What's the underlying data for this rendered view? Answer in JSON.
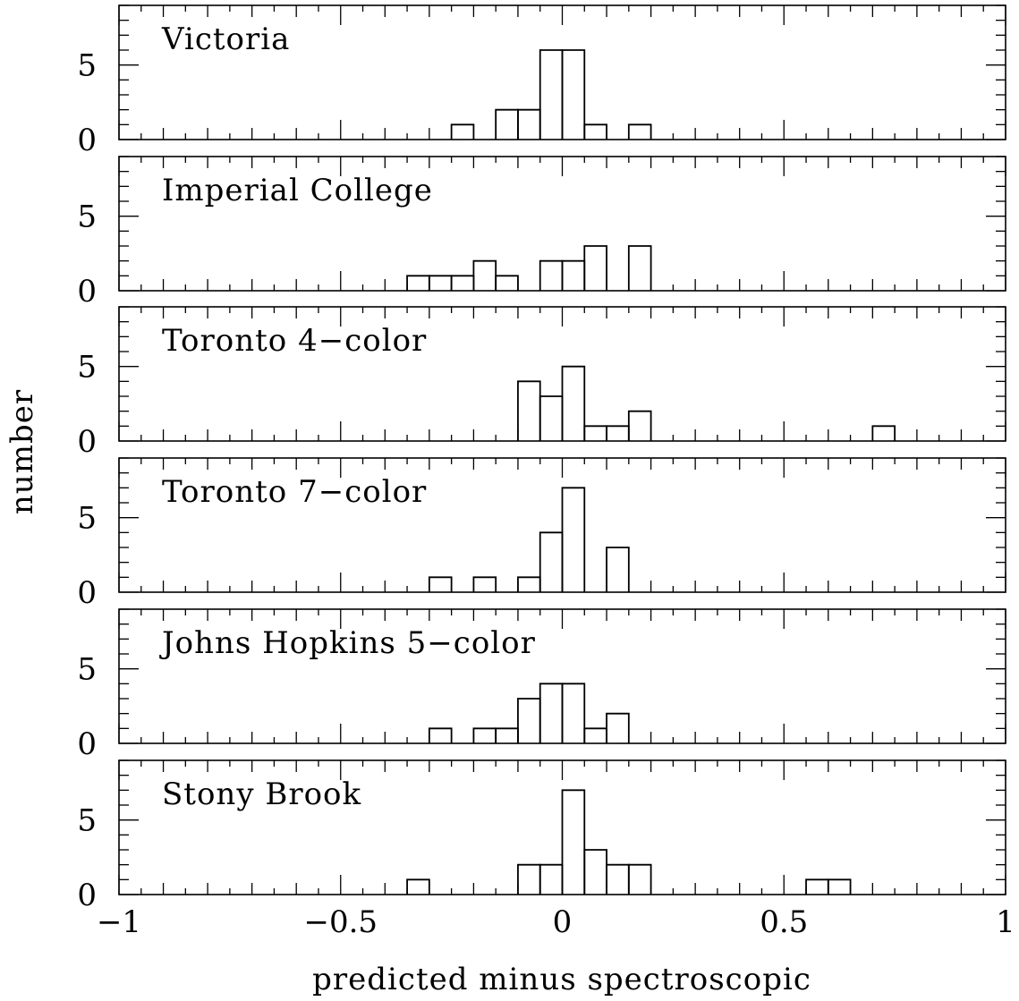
{
  "chart_data": {
    "type": "histogram",
    "xlabel": "predicted minus spectroscopic",
    "ylabel": "number",
    "xlim": [
      -1,
      1
    ],
    "ylim": [
      0,
      9
    ],
    "xticks_major": [
      -1,
      -0.5,
      0,
      0.5,
      1
    ],
    "xtick_labels": [
      "−1",
      "−0.5",
      "0",
      "0.5",
      "1"
    ],
    "yticks_major": [
      0,
      5
    ],
    "ytick_labels": [
      "0",
      "5"
    ],
    "bin_width": 0.05,
    "panels": [
      {
        "name": "Victoria",
        "bins": [
          {
            "x0": -0.25,
            "count": 1
          },
          {
            "x0": -0.15,
            "count": 2
          },
          {
            "x0": -0.1,
            "count": 2
          },
          {
            "x0": -0.05,
            "count": 6
          },
          {
            "x0": 0.0,
            "count": 6
          },
          {
            "x0": 0.05,
            "count": 1
          },
          {
            "x0": 0.15,
            "count": 1
          }
        ]
      },
      {
        "name": "Imperial College",
        "bins": [
          {
            "x0": -0.35,
            "count": 1
          },
          {
            "x0": -0.3,
            "count": 1
          },
          {
            "x0": -0.25,
            "count": 1
          },
          {
            "x0": -0.2,
            "count": 2
          },
          {
            "x0": -0.15,
            "count": 1
          },
          {
            "x0": -0.05,
            "count": 2
          },
          {
            "x0": 0.0,
            "count": 2
          },
          {
            "x0": 0.05,
            "count": 3
          },
          {
            "x0": 0.15,
            "count": 3
          }
        ]
      },
      {
        "name": "Toronto 4−color",
        "bins": [
          {
            "x0": -0.1,
            "count": 4
          },
          {
            "x0": -0.05,
            "count": 3
          },
          {
            "x0": 0.0,
            "count": 5
          },
          {
            "x0": 0.05,
            "count": 1
          },
          {
            "x0": 0.1,
            "count": 1
          },
          {
            "x0": 0.15,
            "count": 2
          },
          {
            "x0": 0.7,
            "count": 1
          }
        ]
      },
      {
        "name": "Toronto 7−color",
        "bins": [
          {
            "x0": -0.3,
            "count": 1
          },
          {
            "x0": -0.2,
            "count": 1
          },
          {
            "x0": -0.1,
            "count": 1
          },
          {
            "x0": -0.05,
            "count": 4
          },
          {
            "x0": 0.0,
            "count": 7
          },
          {
            "x0": 0.1,
            "count": 3
          }
        ]
      },
      {
        "name": "Johns Hopkins 5−color",
        "bins": [
          {
            "x0": -0.3,
            "count": 1
          },
          {
            "x0": -0.2,
            "count": 1
          },
          {
            "x0": -0.15,
            "count": 1
          },
          {
            "x0": -0.1,
            "count": 3
          },
          {
            "x0": -0.05,
            "count": 4
          },
          {
            "x0": 0.0,
            "count": 4
          },
          {
            "x0": 0.05,
            "count": 1
          },
          {
            "x0": 0.1,
            "count": 2
          }
        ]
      },
      {
        "name": "Stony Brook",
        "bins": [
          {
            "x0": -0.35,
            "count": 1
          },
          {
            "x0": -0.1,
            "count": 2
          },
          {
            "x0": -0.05,
            "count": 2
          },
          {
            "x0": 0.0,
            "count": 7
          },
          {
            "x0": 0.05,
            "count": 3
          },
          {
            "x0": 0.1,
            "count": 2
          },
          {
            "x0": 0.15,
            "count": 2
          },
          {
            "x0": 0.55,
            "count": 1
          },
          {
            "x0": 0.6,
            "count": 1
          }
        ]
      }
    ]
  }
}
